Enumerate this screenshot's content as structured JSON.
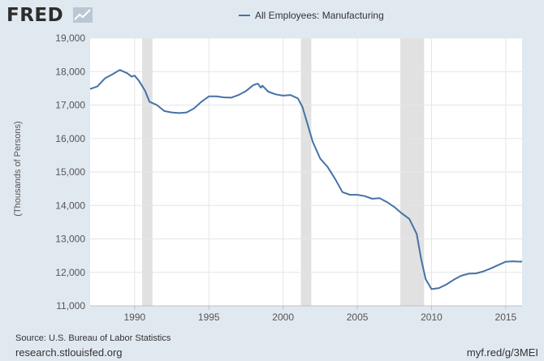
{
  "brand": {
    "logo_text": "FRED",
    "logo_icon": "fred-graph-icon"
  },
  "chart_data": {
    "type": "line",
    "title": "",
    "xlabel": "",
    "ylabel": "(Thousands of Persons)",
    "xlim": [
      1987.0,
      2016.1
    ],
    "ylim": [
      11000,
      19000
    ],
    "x_ticks": [
      "1990",
      "1995",
      "2000",
      "2005",
      "2010",
      "2015"
    ],
    "y_ticks": [
      "11,000",
      "12,000",
      "13,000",
      "14,000",
      "15,000",
      "16,000",
      "17,000",
      "18,000",
      "19,000"
    ],
    "grid": true,
    "legend_position": "top-center",
    "recessions": [
      [
        1990.5,
        1991.2
      ],
      [
        2001.2,
        2001.9
      ],
      [
        2007.9,
        2009.5
      ]
    ],
    "series": [
      {
        "name": "All Employees: Manufacturing",
        "color": "#4572a7",
        "points": [
          [
            1987.0,
            17480
          ],
          [
            1987.5,
            17560
          ],
          [
            1988.0,
            17800
          ],
          [
            1988.5,
            17920
          ],
          [
            1989.0,
            18050
          ],
          [
            1989.5,
            17950
          ],
          [
            1989.8,
            17850
          ],
          [
            1990.0,
            17880
          ],
          [
            1990.3,
            17720
          ],
          [
            1990.7,
            17430
          ],
          [
            1991.0,
            17100
          ],
          [
            1991.5,
            17000
          ],
          [
            1992.0,
            16820
          ],
          [
            1992.5,
            16780
          ],
          [
            1993.0,
            16760
          ],
          [
            1993.5,
            16780
          ],
          [
            1994.0,
            16900
          ],
          [
            1994.5,
            17100
          ],
          [
            1995.0,
            17260
          ],
          [
            1995.5,
            17260
          ],
          [
            1996.0,
            17230
          ],
          [
            1996.5,
            17220
          ],
          [
            1997.0,
            17300
          ],
          [
            1997.5,
            17420
          ],
          [
            1998.0,
            17600
          ],
          [
            1998.3,
            17640
          ],
          [
            1998.5,
            17520
          ],
          [
            1998.6,
            17580
          ],
          [
            1999.0,
            17400
          ],
          [
            1999.5,
            17320
          ],
          [
            2000.0,
            17280
          ],
          [
            2000.5,
            17300
          ],
          [
            2001.0,
            17200
          ],
          [
            2001.3,
            16950
          ],
          [
            2001.6,
            16500
          ],
          [
            2002.0,
            15900
          ],
          [
            2002.5,
            15400
          ],
          [
            2003.0,
            15150
          ],
          [
            2003.5,
            14800
          ],
          [
            2004.0,
            14400
          ],
          [
            2004.5,
            14320
          ],
          [
            2005.0,
            14320
          ],
          [
            2005.5,
            14280
          ],
          [
            2006.0,
            14200
          ],
          [
            2006.5,
            14220
          ],
          [
            2007.0,
            14100
          ],
          [
            2007.5,
            13950
          ],
          [
            2008.0,
            13760
          ],
          [
            2008.5,
            13600
          ],
          [
            2009.0,
            13150
          ],
          [
            2009.3,
            12400
          ],
          [
            2009.6,
            11800
          ],
          [
            2010.0,
            11500
          ],
          [
            2010.5,
            11530
          ],
          [
            2011.0,
            11640
          ],
          [
            2011.5,
            11780
          ],
          [
            2012.0,
            11900
          ],
          [
            2012.5,
            11960
          ],
          [
            2013.0,
            11970
          ],
          [
            2013.5,
            12030
          ],
          [
            2014.0,
            12120
          ],
          [
            2014.5,
            12220
          ],
          [
            2015.0,
            12320
          ],
          [
            2015.5,
            12330
          ],
          [
            2016.0,
            12320
          ],
          [
            2016.1,
            12330
          ]
        ]
      }
    ]
  },
  "footer": {
    "source": "Source: U.S. Bureau of Labor Statistics",
    "site": "research.stlouisfed.org",
    "short_url": "myf.red/g/3MEI"
  }
}
